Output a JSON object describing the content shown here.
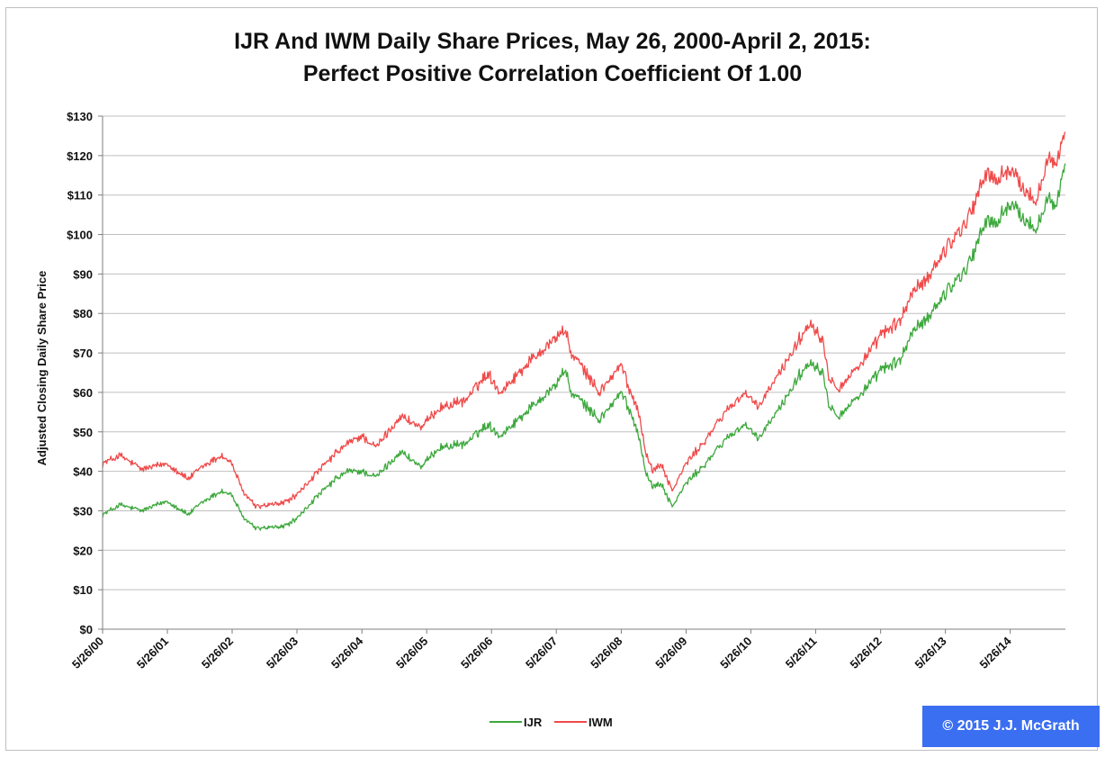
{
  "chart_data": {
    "type": "line",
    "title": "IJR And IWM Daily Share Prices, May 26, 2000-April 2, 2015:",
    "subtitle": "Perfect Positive Correlation Coefficient Of 1.00",
    "ylabel": "Adjusted Closing Daily Share Price",
    "xlabel": "",
    "ylim": [
      0,
      130
    ],
    "y_ticks": [
      "$0",
      "$10",
      "$20",
      "$30",
      "$40",
      "$50",
      "$60",
      "$70",
      "$80",
      "$90",
      "$100",
      "$110",
      "$120",
      "$130"
    ],
    "x_ticks": [
      "5/26/00",
      "5/26/01",
      "5/26/02",
      "5/26/03",
      "5/26/04",
      "5/26/05",
      "5/26/06",
      "5/26/07",
      "5/26/08",
      "5/26/09",
      "5/26/10",
      "5/26/11",
      "5/26/12",
      "5/26/13",
      "5/26/14"
    ],
    "grid": true,
    "legend_position": "bottom-center",
    "x_dates": [
      "2000-05-26",
      "2000-09-01",
      "2001-01-02",
      "2001-05-25",
      "2001-09-21",
      "2001-12-03",
      "2002-03-25",
      "2002-05-24",
      "2002-07-23",
      "2002-10-09",
      "2003-03-11",
      "2003-05-27",
      "2003-09-02",
      "2003-12-31",
      "2004-03-05",
      "2004-05-26",
      "2004-08-12",
      "2004-12-31",
      "2005-04-28",
      "2005-08-01",
      "2005-12-30",
      "2006-05-05",
      "2006-07-14",
      "2006-12-29",
      "2007-05-25",
      "2007-07-13",
      "2007-08-16",
      "2007-10-09",
      "2008-01-22",
      "2008-05-28",
      "2008-07-15",
      "2008-08-29",
      "2008-10-10",
      "2008-11-20",
      "2009-01-06",
      "2009-03-09",
      "2009-05-26",
      "2009-09-15",
      "2009-12-31",
      "2010-04-23",
      "2010-07-02",
      "2010-11-05",
      "2011-02-18",
      "2011-04-29",
      "2011-07-07",
      "2011-08-08",
      "2011-08-31",
      "2011-10-03",
      "2012-03-26",
      "2012-06-04",
      "2012-09-14",
      "2012-11-15",
      "2013-01-31",
      "2013-05-21",
      "2013-09-30",
      "2014-01-15",
      "2014-03-04",
      "2014-05-15",
      "2014-07-01",
      "2014-10-13",
      "2014-12-29",
      "2015-01-30",
      "2015-04-02"
    ],
    "series": [
      {
        "name": "IJR",
        "color": "#3da83d",
        "values": [
          29,
          31.5,
          30,
          32.5,
          29,
          32,
          35,
          34,
          28.5,
          25.5,
          26,
          28,
          33,
          38,
          40,
          40,
          38.5,
          45,
          41,
          46,
          47,
          52,
          49,
          56,
          62,
          66,
          60,
          58,
          53,
          60,
          55,
          50,
          40,
          36,
          37,
          31,
          37,
          42,
          48,
          52,
          48,
          56,
          64,
          68,
          65,
          57,
          56,
          54,
          62,
          66,
          68,
          75,
          78,
          85,
          92,
          104,
          102,
          108,
          106,
          101,
          110,
          106,
          118
        ]
      },
      {
        "name": "IWM",
        "color": "#f04a4a",
        "values": [
          42,
          44,
          40.5,
          42,
          38,
          41,
          44,
          42,
          35,
          31,
          32,
          34,
          39,
          44.5,
          47,
          49,
          46,
          54,
          51,
          56,
          58,
          65,
          60,
          68,
          74,
          76,
          70,
          67,
          60,
          67,
          60,
          56,
          45,
          40,
          42,
          35,
          42,
          48,
          55,
          60,
          56,
          65,
          73,
          78,
          73,
          64,
          63,
          61,
          70,
          75,
          78,
          85,
          88,
          96,
          104,
          116,
          113,
          117,
          114,
          108,
          120,
          117,
          126
        ]
      }
    ]
  },
  "legend": {
    "ijr_label": "IJR",
    "iwm_label": "IWM"
  },
  "copyright": "© 2015 J.J. McGrath"
}
